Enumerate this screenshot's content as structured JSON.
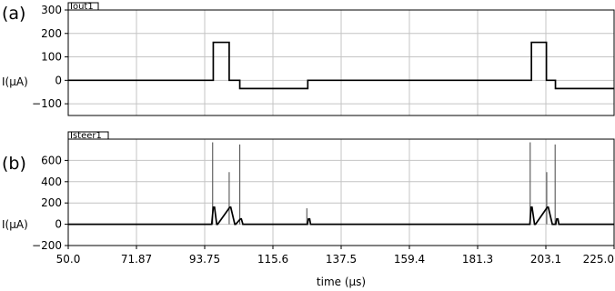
{
  "chart_data": [
    {
      "type": "line",
      "panel_label": "(a)",
      "trace_name": "Iout1",
      "ylabel": "I(µA)",
      "xlim": [
        50.0,
        225.0
      ],
      "ylim": [
        -150,
        300
      ],
      "yticks": [
        300,
        200,
        100,
        0,
        -100
      ],
      "grid": true,
      "series": [
        {
          "name": "Iout1",
          "x": [
            50.0,
            96.5,
            96.5,
            101.6,
            101.6,
            105.0,
            105.0,
            126.8,
            126.8,
            198.5,
            198.5,
            203.3,
            203.3,
            206.2,
            206.2,
            225.0
          ],
          "y": [
            0,
            0,
            162,
            162,
            0,
            0,
            -35,
            -35,
            0,
            0,
            162,
            162,
            0,
            0,
            -35,
            -35
          ]
        }
      ]
    },
    {
      "type": "line",
      "panel_label": "(b)",
      "trace_name": "Isteer1",
      "ylabel": "I(µA)",
      "xlim": [
        50.0,
        225.0
      ],
      "ylim": [
        -200,
        800
      ],
      "yticks": [
        600,
        400,
        200,
        0,
        -200
      ],
      "xticks": [
        "50.0",
        "71.87",
        "93.75",
        "115.6",
        "137.5",
        "159.4",
        "181.3",
        "203.1",
        "225.0"
      ],
      "xlabel": "time (µs)",
      "grid": true,
      "series": [
        {
          "name": "Isteer1",
          "x": [
            50.0,
            96.0,
            96.5,
            96.9,
            97.6,
            97.9,
            101.8,
            102.1,
            103.4,
            103.7,
            105.2,
            105.5,
            106.0,
            106.3,
            126.7,
            127.0,
            127.4,
            127.7,
            198.0,
            198.4,
            198.7,
            199.5,
            199.8,
            203.6,
            203.9,
            205.2,
            205.5,
            206.3,
            206.6,
            207.0,
            207.3,
            225.0
          ],
          "y": [
            0,
            0,
            160,
            160,
            0,
            0,
            160,
            160,
            0,
            0,
            50,
            50,
            0,
            0,
            0,
            50,
            50,
            0,
            0,
            160,
            160,
            0,
            0,
            160,
            160,
            0,
            0,
            0,
            50,
            50,
            0,
            0
          ]
        }
      ],
      "spikes": [
        {
          "x": 96.3,
          "y": 770
        },
        {
          "x": 101.6,
          "y": 490
        },
        {
          "x": 105.0,
          "y": 750
        },
        {
          "x": 126.5,
          "y": 150
        },
        {
          "x": 198.1,
          "y": 770
        },
        {
          "x": 203.4,
          "y": 490
        },
        {
          "x": 206.1,
          "y": 750
        }
      ]
    }
  ]
}
